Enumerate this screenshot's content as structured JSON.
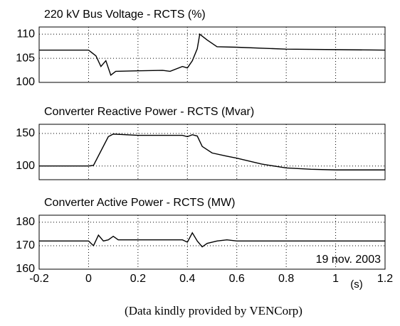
{
  "chart_data": [
    {
      "type": "line",
      "title": "220 kV Bus Voltage - RCTS (%)",
      "x": [
        -0.2,
        0.0,
        0.03,
        0.05,
        0.07,
        0.09,
        0.11,
        0.2,
        0.3,
        0.33,
        0.38,
        0.4,
        0.42,
        0.44,
        0.45,
        0.48,
        0.52,
        0.6,
        0.8,
        1.0,
        1.2
      ],
      "values": [
        106.7,
        106.7,
        105.5,
        103.3,
        104.5,
        101.5,
        102.3,
        102.4,
        102.5,
        102.3,
        103.3,
        103.0,
        104.5,
        107.0,
        110.0,
        108.8,
        107.4,
        107.3,
        106.9,
        106.8,
        106.7
      ],
      "color": "#000000",
      "xlim": [
        -0.2,
        1.2
      ],
      "xticks": [
        -0.2,
        0,
        0.2,
        0.4,
        0.6,
        0.8,
        1,
        1.2
      ],
      "ylim": [
        100,
        111.5
      ],
      "yticks": [
        100,
        105,
        110
      ],
      "grid": true
    },
    {
      "type": "line",
      "title": "Converter Reactive Power - RCTS (Mvar)",
      "x": [
        -0.2,
        0.0,
        0.02,
        0.08,
        0.1,
        0.2,
        0.3,
        0.38,
        0.4,
        0.42,
        0.44,
        0.46,
        0.5,
        0.56,
        0.6,
        0.7,
        0.8,
        0.9,
        1.0,
        1.2
      ],
      "values": [
        100,
        100,
        101,
        145,
        149,
        147,
        147,
        147,
        145,
        148,
        146,
        130,
        120,
        115,
        112,
        103,
        97,
        95,
        94,
        94
      ],
      "color": "#000000",
      "xlim": [
        -0.2,
        1.2
      ],
      "xticks": [
        -0.2,
        0,
        0.2,
        0.4,
        0.6,
        0.8,
        1,
        1.2
      ],
      "ylim": [
        79,
        164
      ],
      "yticks": [
        100,
        150
      ],
      "grid": true
    },
    {
      "type": "line",
      "title": "Converter Active Power - RCTS (MW)",
      "x": [
        -0.2,
        0.0,
        0.02,
        0.04,
        0.06,
        0.08,
        0.1,
        0.12,
        0.2,
        0.3,
        0.38,
        0.4,
        0.42,
        0.44,
        0.46,
        0.48,
        0.52,
        0.56,
        0.6,
        0.8,
        1.0,
        1.2
      ],
      "values": [
        172,
        172,
        170,
        174.5,
        172,
        172.5,
        174,
        172.5,
        172.5,
        172.5,
        172.5,
        171.5,
        175.5,
        172,
        169.5,
        171,
        172,
        172.5,
        172,
        172,
        172,
        172
      ],
      "color": "#000000",
      "xlim": [
        -0.2,
        1.2
      ],
      "xticks": [
        -0.2,
        0,
        0.2,
        0.4,
        0.6,
        0.8,
        1,
        1.2
      ],
      "ylim": [
        160,
        183
      ],
      "yticks": [
        160,
        170,
        180
      ],
      "grid": true,
      "x_label": "(s)",
      "annotation": "19 nov. 2003"
    }
  ],
  "caption": "(Data kindly provided by VENCorp)"
}
